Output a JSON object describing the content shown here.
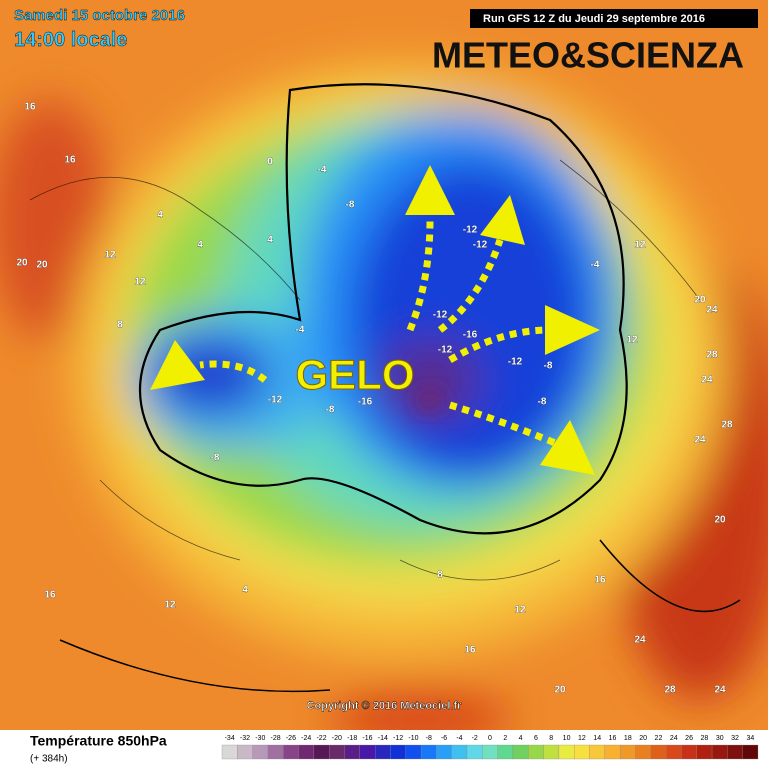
{
  "header": {
    "date": "Samedi 15 octobre 2016",
    "time": "14:00 locale",
    "run": "Run GFS 12 Z du Jeudi 29 septembre 2016",
    "brand": "METEO&SCIENZA"
  },
  "map": {
    "annotation": "GELO",
    "copyright": "Copyright © 2016 Meteociel.fr",
    "contour_labels": [
      "16",
      "20",
      "20",
      "16",
      "12",
      "12",
      "8",
      "4",
      "4",
      "4",
      "0",
      "-4",
      "-4",
      "-8",
      "-12",
      "-12",
      "-12",
      "-12",
      "-16",
      "-16",
      "-12",
      "-8",
      "-8",
      "-8",
      "-4",
      "-12",
      "-8",
      "12",
      "12",
      "20",
      "24",
      "24",
      "28",
      "28",
      "24",
      "20",
      "16",
      "12",
      "8",
      "4",
      "16",
      "12",
      "16",
      "20",
      "24",
      "28",
      "24"
    ]
  },
  "legend": {
    "title": "Température 850hPa",
    "subtitle": "(+ 384h)",
    "ticks": [
      -34,
      -32,
      -30,
      -28,
      -26,
      -24,
      -22,
      -20,
      -18,
      -16,
      -14,
      -12,
      -10,
      -8,
      -6,
      -4,
      -2,
      0,
      2,
      4,
      6,
      8,
      10,
      12,
      14,
      16,
      18,
      20,
      22,
      24,
      26,
      28,
      30,
      32,
      34
    ],
    "colors": [
      "#d8d8d8",
      "#c8b8c8",
      "#b898b8",
      "#a070a0",
      "#884488",
      "#702870",
      "#581858",
      "#6a2a6a",
      "#5a1e8a",
      "#4a18a8",
      "#2828c0",
      "#1030d8",
      "#1050f0",
      "#1878f8",
      "#28a0f8",
      "#40c0f0",
      "#60d8e8",
      "#70e0c0",
      "#60d890",
      "#70d060",
      "#98d848",
      "#c0e040",
      "#e8ec40",
      "#f8e040",
      "#f8c838",
      "#f8b030",
      "#f09828",
      "#e88020",
      "#e06018",
      "#d84818",
      "#c83018",
      "#b02010",
      "#981810",
      "#801010",
      "#600808"
    ]
  }
}
